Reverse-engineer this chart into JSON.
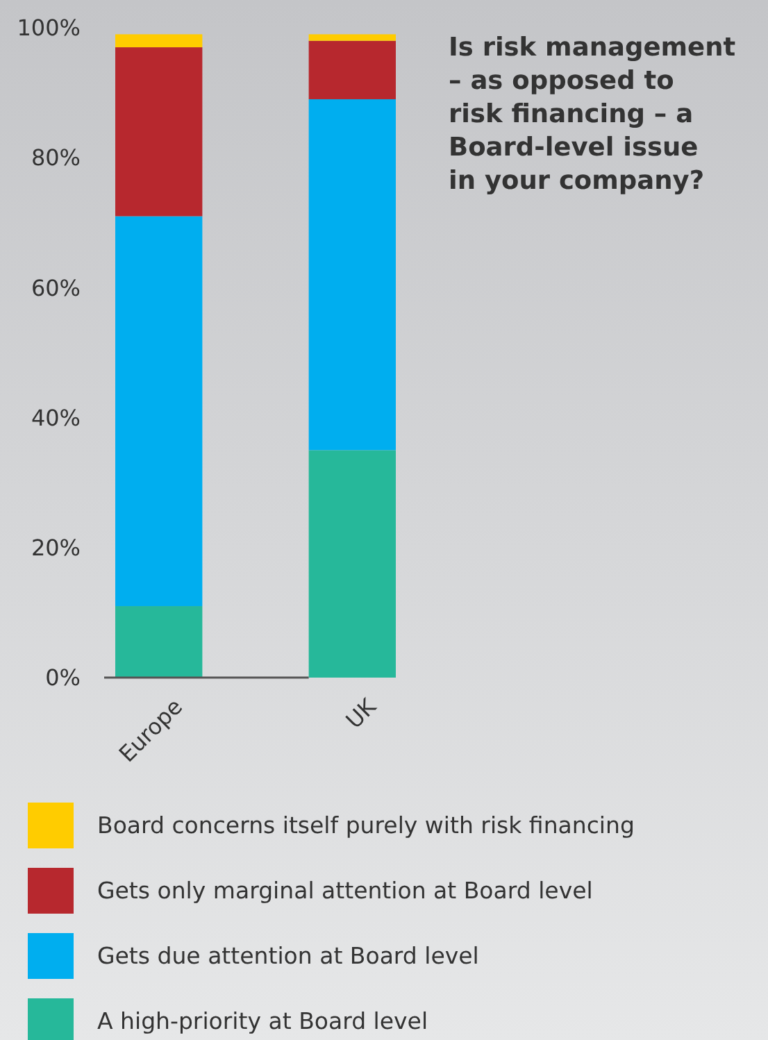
{
  "chart_data": {
    "type": "bar",
    "title": "Is risk management – as opposed to risk financing – a Board-level issue in your company?",
    "categories": [
      "Europe",
      "UK"
    ],
    "stacked": true,
    "legend": "bottom",
    "grid": false,
    "ylim": [
      0,
      100
    ],
    "yticks": [
      {
        "value": 0,
        "label": "0%"
      },
      {
        "value": 20,
        "label": "20%"
      },
      {
        "value": 40,
        "label": "40%"
      },
      {
        "value": 60,
        "label": "60%"
      },
      {
        "value": 80,
        "label": "80%"
      },
      {
        "value": 100,
        "label": "100%"
      }
    ],
    "series": [
      {
        "name": "A high-priority at Board level",
        "color": "#26b89a",
        "values": [
          11,
          35
        ]
      },
      {
        "name": "Gets due attention at Board level",
        "color": "#00aeef",
        "values": [
          60,
          54
        ]
      },
      {
        "name": "Gets only marginal attention at Board level",
        "color": "#b7282e",
        "values": [
          26,
          9
        ]
      },
      {
        "name": "Board concerns itself purely with risk financing",
        "color": "#ffcc00",
        "values": [
          2,
          1
        ]
      }
    ]
  }
}
